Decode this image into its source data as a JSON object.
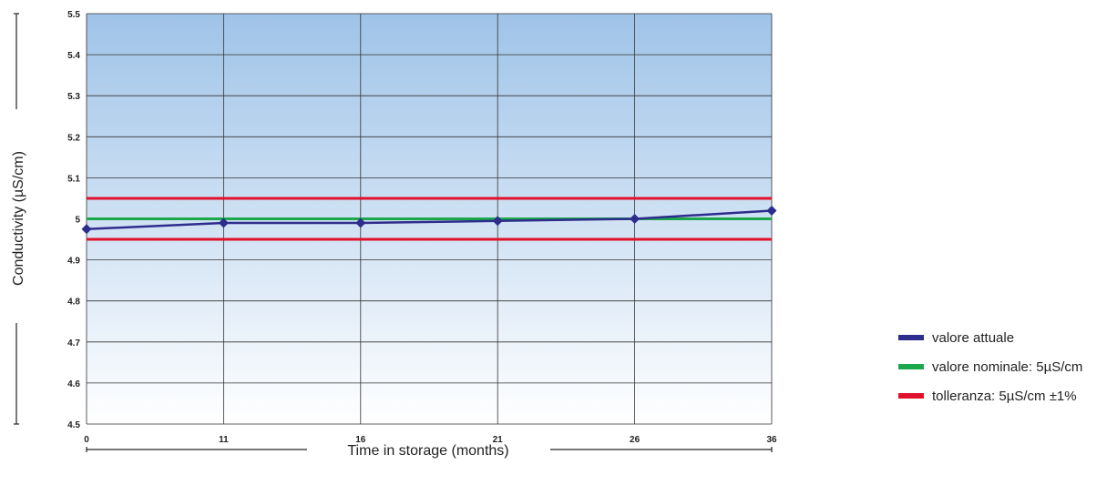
{
  "chart_data": {
    "type": "line",
    "x": [
      0,
      11,
      16,
      21,
      26,
      36
    ],
    "tick_labels": [
      "0",
      "11",
      "16",
      "21",
      "26",
      "36"
    ],
    "series": [
      {
        "name": "valore attuale",
        "values": [
          4.975,
          4.99,
          4.99,
          4.995,
          5.0,
          5.02
        ],
        "color": "#2e2c8c",
        "marker": "diamond"
      }
    ],
    "reference_lines": [
      {
        "name": "valore nominale: 5µS/cm",
        "value": 5.0,
        "color": "#1aa84a"
      },
      {
        "name": "tolleranza: 5µS/cm ±1%",
        "values": [
          5.05,
          4.95
        ],
        "color": "#e0112b"
      }
    ],
    "xlabel": "Time in storage (months)",
    "ylabel": "Conductivity (µS/cm)",
    "ylim": [
      4.5,
      5.5
    ],
    "yticks": [
      "4.5",
      "4.6",
      "4.7",
      "4.8",
      "4.9",
      "5",
      "5.1",
      "5.2",
      "5.3",
      "5.4",
      "5.5"
    ],
    "grid": true,
    "legend_position": "right",
    "background_gradient": [
      "#9fc3e8",
      "#ffffff"
    ],
    "x_spacing": "categorical"
  },
  "legend": {
    "items": [
      {
        "label": "valore attuale",
        "color": "#2e2c8c"
      },
      {
        "label": "valore nominale: 5µS/cm",
        "color": "#1aa84a"
      },
      {
        "label": "tolleranza: 5µS/cm ±1%",
        "color": "#e0112b"
      }
    ]
  }
}
